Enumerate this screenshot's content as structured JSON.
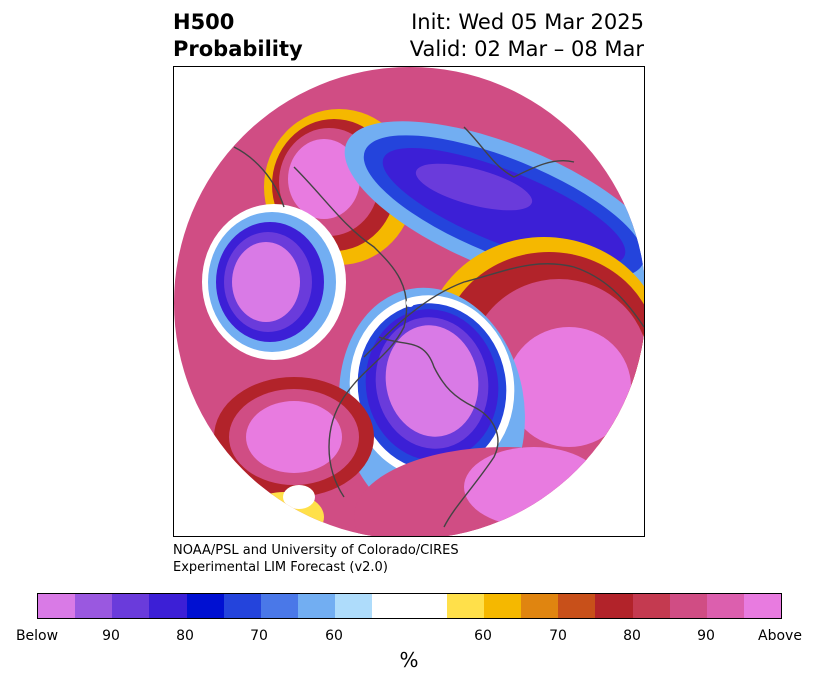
{
  "header": {
    "field": "H500",
    "product": "Probability",
    "init": "Init: Wed 05 Mar 2025",
    "valid": "Valid: 02 Mar – 08 Mar"
  },
  "credit": {
    "line1": "NOAA/PSL and University of Colorado/CIRES",
    "line2": "Experimental LIM Forecast (v2.0)"
  },
  "colorbar": {
    "unit": "%",
    "colors": [
      "#d97ae6",
      "#9a58e0",
      "#6a3bdb",
      "#3c1fd6",
      "#0010d2",
      "#2444dc",
      "#4a78e8",
      "#72aef2",
      "#aedcfb",
      "#ffffff",
      "#ffffff",
      "#ffe04a",
      "#f5b800",
      "#e08510",
      "#c8501a",
      "#b2232a",
      "#c43a50",
      "#d04d84",
      "#dc5fae",
      "#e87be0"
    ],
    "tick_labels": [
      "Below",
      "90",
      "80",
      "70",
      "60",
      "60",
      "70",
      "80",
      "90",
      "Above"
    ]
  },
  "map_colors": {
    "above_high": "#e87be0",
    "above_mid": "#d04d84",
    "above_low": "#b2232a",
    "warm_edge": "#f5b800",
    "below_high": "#d97ae6",
    "below_mid": "#3c1fd6",
    "below_low": "#72aef2",
    "neutral": "#ffffff",
    "coast": "#444444"
  }
}
